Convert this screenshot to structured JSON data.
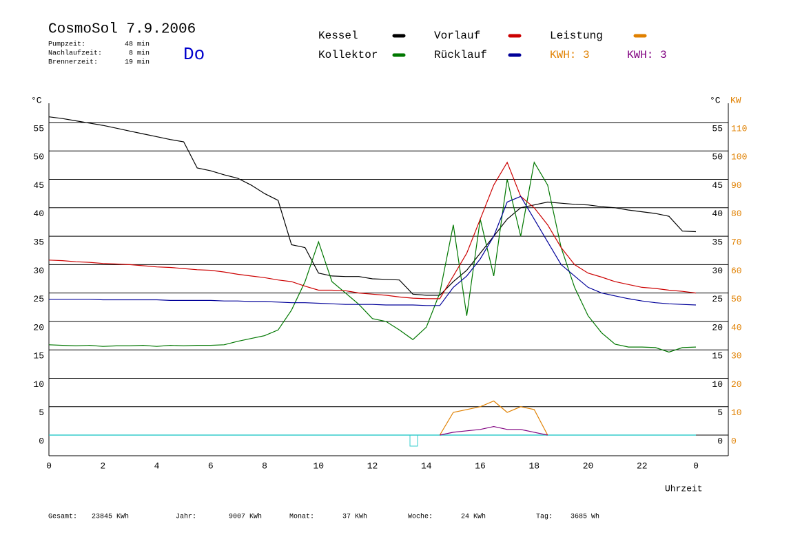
{
  "header": {
    "title": "CosmoSol 7.9.2006",
    "day": "Do",
    "stats": [
      {
        "label": "Pumpzeit:",
        "value": "48 min"
      },
      {
        "label": "Nachlaufzeit:",
        "value": "8 min"
      },
      {
        "label": "Brennerzeit:",
        "value": "19 min"
      }
    ]
  },
  "chart_data": {
    "type": "line",
    "y_label": "°C",
    "y2_label_c": "°C",
    "y2_label": "KW",
    "x_label": "Uhrzeit",
    "x": [
      0,
      0.5,
      1,
      1.5,
      2,
      2.5,
      3,
      3.5,
      4,
      4.5,
      5,
      5.5,
      6,
      6.5,
      7,
      7.5,
      8,
      8.5,
      9,
      9.5,
      10,
      10.5,
      11,
      11.5,
      12,
      12.5,
      13,
      13.5,
      14,
      14.5,
      15,
      15.5,
      16,
      16.5,
      17,
      17.5,
      18,
      18.5,
      19,
      19.5,
      20,
      20.5,
      21,
      21.5,
      22,
      22.5,
      23,
      23.5,
      24
    ],
    "xlim": [
      0,
      24
    ],
    "xticks": [
      0,
      2,
      4,
      6,
      8,
      10,
      12,
      14,
      16,
      18,
      20,
      22,
      {
        "value": 24,
        "label": "0"
      }
    ],
    "ylim": [
      -3.63,
      58
    ],
    "yticks": [
      0,
      5,
      10,
      15,
      20,
      25,
      30,
      35,
      40,
      45,
      50,
      55
    ],
    "y2lim": [
      -7.26,
      116
    ],
    "y2ticks": [
      0,
      10,
      20,
      30,
      40,
      50,
      60,
      70,
      80,
      90,
      100,
      110
    ],
    "grid": true,
    "series": [
      {
        "name": "Kessel",
        "color": "#000000",
        "values": [
          56,
          55.7,
          55.3,
          54.9,
          54.5,
          54,
          53.5,
          53,
          52.5,
          52,
          51.6,
          47,
          46.5,
          45.8,
          45.2,
          44,
          42.5,
          41.3,
          33.5,
          33,
          28.5,
          28,
          27.9,
          27.9,
          27.5,
          27.4,
          27.3,
          24.8,
          24.6,
          24.6,
          27,
          29,
          32,
          35,
          38,
          40,
          40.5,
          41,
          40.8,
          40.6,
          40.5,
          40.2,
          40,
          39.6,
          39.3,
          39,
          38.5,
          35.9,
          35.8
        ]
      },
      {
        "name": "Kollektor",
        "color": "#007700",
        "values": [
          15.9,
          15.8,
          15.7,
          15.8,
          15.6,
          15.7,
          15.7,
          15.8,
          15.6,
          15.8,
          15.7,
          15.8,
          15.8,
          15.9,
          16.5,
          17,
          17.5,
          18.5,
          22,
          27,
          34,
          27,
          25,
          23,
          20.5,
          20,
          18.5,
          16.8,
          19,
          25,
          37,
          21,
          38,
          28,
          45,
          35,
          48,
          44,
          33,
          26,
          21,
          18,
          16,
          15.5,
          15.5,
          15.4,
          14.6,
          15.4,
          15.5
        ]
      },
      {
        "name": "Vorlauf",
        "color": "#cc0000",
        "values": [
          30.8,
          30.7,
          30.5,
          30.4,
          30.2,
          30.1,
          30,
          29.8,
          29.6,
          29.5,
          29.3,
          29.1,
          29,
          28.7,
          28.3,
          28,
          27.7,
          27.3,
          27,
          26.2,
          25.5,
          25.5,
          25.4,
          25,
          24.8,
          24.6,
          24.3,
          24.1,
          24,
          24,
          28,
          32,
          38,
          44,
          48,
          42,
          40,
          37,
          33,
          30,
          28.5,
          27.8,
          27,
          26.5,
          26,
          25.8,
          25.5,
          25.3,
          25
        ]
      },
      {
        "name": "Rücklauf",
        "color": "#000099",
        "values": [
          23.9,
          23.9,
          23.9,
          23.9,
          23.8,
          23.8,
          23.8,
          23.8,
          23.8,
          23.7,
          23.7,
          23.7,
          23.7,
          23.6,
          23.6,
          23.5,
          23.5,
          23.4,
          23.3,
          23.3,
          23.2,
          23.1,
          23,
          23,
          23,
          22.9,
          22.9,
          22.9,
          22.8,
          22.8,
          26,
          28,
          31,
          35,
          41,
          42,
          38,
          34,
          30,
          28,
          26,
          25,
          24.5,
          24,
          23.6,
          23.3,
          23.1,
          23,
          22.9
        ]
      },
      {
        "name": "Leistung",
        "color": "#e08000",
        "axis": "y2",
        "values": [
          null,
          null,
          null,
          null,
          null,
          null,
          null,
          null,
          null,
          null,
          null,
          null,
          null,
          null,
          null,
          null,
          null,
          null,
          null,
          null,
          null,
          null,
          null,
          null,
          null,
          null,
          null,
          null,
          null,
          0,
          8,
          9,
          10,
          12,
          8,
          10,
          9,
          0,
          null,
          null,
          null,
          null,
          null,
          null,
          null,
          null,
          null,
          null,
          null
        ]
      },
      {
        "name": "KWH: 3",
        "color": "#800080",
        "axis": "y2",
        "values": [
          null,
          null,
          null,
          null,
          null,
          null,
          null,
          null,
          null,
          null,
          null,
          null,
          null,
          null,
          null,
          null,
          null,
          null,
          null,
          null,
          null,
          null,
          null,
          null,
          null,
          null,
          null,
          null,
          null,
          0,
          1,
          1.5,
          2,
          3,
          2,
          2,
          1,
          0,
          null,
          null,
          null,
          null,
          null,
          null,
          null,
          null,
          null,
          null,
          null
        ]
      }
    ],
    "annotations": [
      {
        "text": "KWH: 3",
        "color": "#e08000"
      }
    ]
  },
  "footer": [
    {
      "label": "Gesamt:",
      "value": "23845 KWh"
    },
    {
      "label": "Jahr:",
      "value": "9007 KWh"
    },
    {
      "label": "Monat:",
      "value": "37 KWh"
    },
    {
      "label": "Woche:",
      "value": "24 KWh"
    },
    {
      "label": "Tag:",
      "value": "3685 Wh"
    }
  ]
}
